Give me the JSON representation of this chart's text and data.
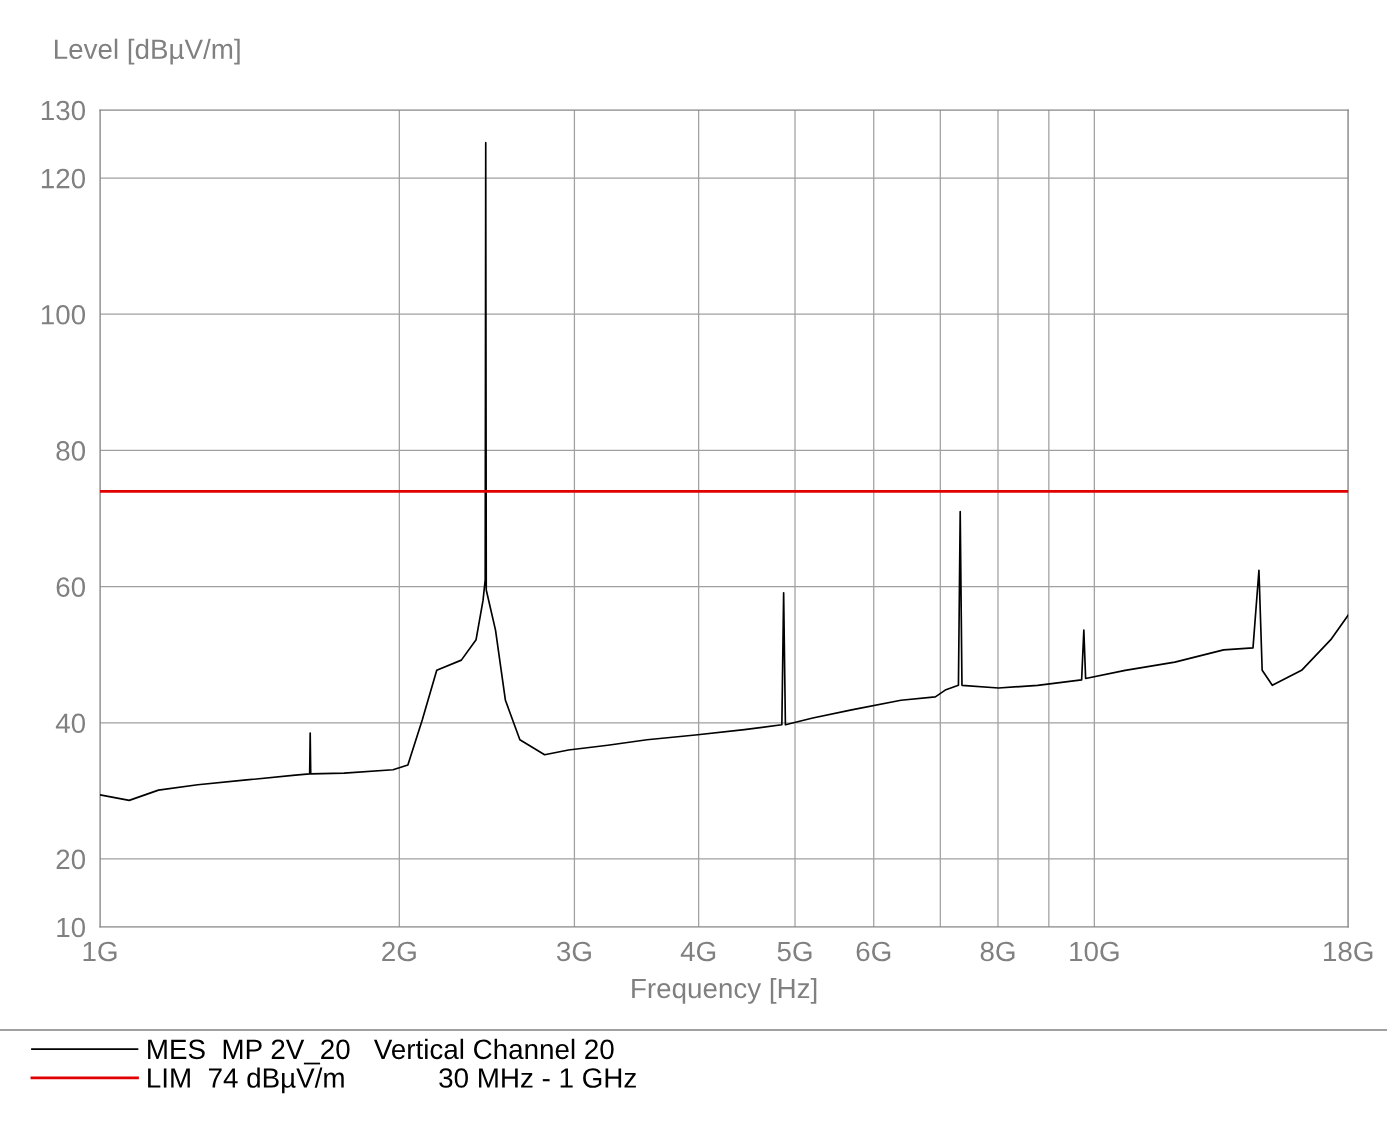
{
  "chart_data": {
    "type": "line",
    "ylabel": "Level [dBµV/m]",
    "xlabel": "Frequency [Hz]",
    "log": "x",
    "grid": true,
    "legend": "bottom",
    "marker": "none",
    "line_style": "solid",
    "xlim": [
      1,
      18
    ],
    "xticks": [
      {
        "value": 1,
        "label": "1G"
      },
      {
        "value": 2,
        "label": "2G"
      },
      {
        "value": 3,
        "label": "3G"
      },
      {
        "value": 4,
        "label": "4G"
      },
      {
        "value": 5,
        "label": "5G"
      },
      {
        "value": 6,
        "label": "6G"
      },
      {
        "value": 7,
        "label": null
      },
      {
        "value": 8,
        "label": "8G"
      },
      {
        "value": 9,
        "label": null
      },
      {
        "value": 10,
        "label": "10G"
      },
      {
        "value": 18,
        "label": "18G"
      }
    ],
    "ylim": [
      10,
      130
    ],
    "yticks": [
      10,
      20,
      40,
      60,
      80,
      100,
      120,
      130
    ],
    "series": [
      {
        "name": "MES  MP 2V_20   Vertical Channel 20",
        "color": "#000000",
        "x": [
          1.0,
          1.07,
          1.145,
          1.254,
          1.404,
          1.572,
          1.625,
          1.627,
          1.629,
          1.76,
          1.971,
          2.04,
          2.109,
          2.181,
          2.309,
          2.389,
          2.428,
          2.44,
          2.443,
          2.446,
          2.499,
          2.557,
          2.644,
          2.8,
          2.959,
          3.241,
          3.549,
          3.97,
          4.447,
          4.85,
          4.87,
          4.89,
          5.21,
          5.7,
          6.39,
          6.92,
          7.08,
          7.3,
          7.33,
          7.36,
          8.01,
          8.77,
          9.71,
          9.76,
          9.8,
          10.74,
          12.05,
          13.49,
          14.44,
          14.64,
          14.75,
          15.1,
          16.16,
          17.29,
          18.0
        ],
        "values": [
          29.4,
          28.6,
          30.1,
          30.9,
          31.6,
          32.3,
          32.5,
          38.5,
          32.5,
          32.6,
          33.1,
          33.8,
          40.4,
          47.7,
          49.2,
          52.2,
          58.0,
          61.0,
          125.2,
          59.5,
          53.6,
          43.3,
          37.5,
          35.3,
          36.0,
          36.7,
          37.5,
          38.2,
          39.0,
          39.7,
          59.1,
          39.7,
          40.7,
          41.9,
          43.3,
          43.8,
          44.8,
          45.5,
          71.0,
          45.5,
          45.1,
          45.5,
          46.3,
          53.6,
          46.5,
          47.7,
          48.9,
          50.7,
          51.0,
          62.4,
          47.7,
          45.5,
          47.7,
          52.2,
          55.8
        ]
      }
    ],
    "ref_lines": [
      {
        "axis": "y",
        "value": 74,
        "label": "LIM  74 dBµV/m            30 MHz - 1 GHz",
        "color": "#e00000",
        "line_style": "solid"
      }
    ]
  }
}
